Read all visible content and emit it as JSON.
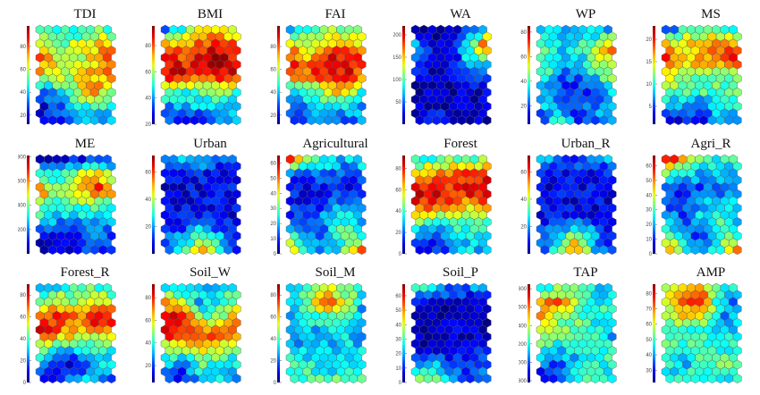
{
  "chart_data": [
    {
      "type": "heatmap",
      "title": "TDI",
      "range": [
        12,
        98
      ],
      "ticks": [
        20,
        40,
        60,
        80
      ],
      "grid": [
        [
          45,
          50,
          45,
          55,
          45
        ],
        [
          70,
          55,
          60,
          70,
          70
        ],
        [
          80,
          62,
          55,
          70,
          82
        ],
        [
          70,
          60,
          62,
          72,
          75
        ],
        [
          30,
          45,
          60,
          78,
          60
        ],
        [
          22,
          28,
          45,
          50,
          42
        ],
        [
          20,
          25,
          35,
          40,
          35
        ]
      ]
    },
    {
      "type": "heatmap",
      "title": "BMI",
      "range": [
        20,
        95
      ],
      "ticks": [
        20,
        40,
        60,
        80
      ],
      "grid": [
        [
          40,
          45,
          70,
          70,
          55
        ],
        [
          78,
          75,
          82,
          85,
          80
        ],
        [
          88,
          82,
          88,
          90,
          88
        ],
        [
          88,
          88,
          88,
          88,
          85
        ],
        [
          60,
          50,
          55,
          60,
          55
        ],
        [
          38,
          45,
          45,
          45,
          40
        ],
        [
          32,
          35,
          30,
          45,
          40
        ]
      ]
    },
    {
      "type": "heatmap",
      "title": "FAI",
      "range": [
        12,
        98
      ],
      "ticks": [
        20,
        40,
        60,
        80
      ],
      "grid": [
        [
          35,
          45,
          55,
          55,
          50
        ],
        [
          70,
          60,
          72,
          75,
          70
        ],
        [
          85,
          75,
          88,
          90,
          85
        ],
        [
          88,
          80,
          85,
          88,
          80
        ],
        [
          40,
          50,
          65,
          75,
          45
        ],
        [
          25,
          40,
          45,
          45,
          38
        ],
        [
          25,
          30,
          40,
          30,
          38
        ]
      ]
    },
    {
      "type": "heatmap",
      "title": "WA",
      "range": [
        0,
        220
      ],
      "ticks": [
        50,
        100,
        150,
        200
      ],
      "grid": [
        [
          15,
          15,
          15,
          40,
          60
        ],
        [
          60,
          15,
          15,
          100,
          200
        ],
        [
          70,
          15,
          15,
          80,
          90
        ],
        [
          15,
          15,
          15,
          40,
          30
        ],
        [
          15,
          15,
          15,
          15,
          20
        ],
        [
          15,
          15,
          15,
          15,
          15
        ],
        [
          15,
          50,
          15,
          15,
          15
        ]
      ]
    },
    {
      "type": "heatmap",
      "title": "WP",
      "range": [
        5,
        85
      ],
      "ticks": [
        20,
        40,
        60,
        80
      ],
      "grid": [
        [
          30,
          30,
          30,
          30,
          30
        ],
        [
          40,
          30,
          35,
          45,
          65
        ],
        [
          45,
          30,
          30,
          45,
          60
        ],
        [
          45,
          25,
          20,
          35,
          45
        ],
        [
          30,
          25,
          15,
          20,
          40
        ],
        [
          30,
          25,
          20,
          25,
          30
        ],
        [
          15,
          40,
          20,
          25,
          25
        ]
      ]
    },
    {
      "type": "heatmap",
      "title": "MS",
      "range": [
        1,
        23
      ],
      "ticks": [
        5,
        10,
        15,
        20
      ],
      "grid": [
        [
          5,
          10,
          12,
          12,
          10
        ],
        [
          17,
          15,
          17,
          18,
          17
        ],
        [
          19,
          16,
          17,
          17,
          20
        ],
        [
          15,
          13,
          12,
          12,
          12
        ],
        [
          12,
          11,
          11,
          11,
          12
        ],
        [
          8,
          8,
          6,
          10,
          10
        ],
        [
          4,
          4,
          4,
          8,
          6
        ]
      ]
    },
    {
      "type": "heatmap",
      "title": "ME",
      "range": [
        0,
        810
      ],
      "ticks": [
        200,
        400,
        600,
        800
      ],
      "grid": [
        [
          80,
          80,
          100,
          150,
          150
        ],
        [
          350,
          300,
          400,
          600,
          400
        ],
        [
          650,
          380,
          500,
          700,
          650
        ],
        [
          450,
          350,
          380,
          400,
          350
        ],
        [
          280,
          250,
          250,
          200,
          250
        ],
        [
          100,
          80,
          80,
          200,
          150
        ],
        [
          80,
          80,
          80,
          180,
          120
        ]
      ]
    },
    {
      "type": "heatmap",
      "title": "Urban",
      "range": [
        0,
        72
      ],
      "ticks": [
        20,
        40,
        60
      ],
      "grid": [
        [
          20,
          20,
          25,
          15,
          20
        ],
        [
          8,
          8,
          8,
          8,
          8
        ],
        [
          8,
          8,
          8,
          8,
          8
        ],
        [
          8,
          8,
          8,
          8,
          8
        ],
        [
          8,
          8,
          12,
          8,
          8
        ],
        [
          12,
          20,
          30,
          20,
          10
        ],
        [
          15,
          25,
          55,
          30,
          10
        ]
      ]
    },
    {
      "type": "heatmap",
      "title": "Agricultural",
      "range": [
        0,
        65
      ],
      "ticks": [
        0,
        10,
        20,
        30,
        40,
        50,
        60
      ],
      "grid": [
        [
          55,
          35,
          25,
          20,
          25
        ],
        [
          15,
          15,
          15,
          15,
          15
        ],
        [
          8,
          8,
          8,
          8,
          8
        ],
        [
          8,
          8,
          12,
          20,
          15
        ],
        [
          15,
          10,
          20,
          28,
          20
        ],
        [
          30,
          15,
          15,
          30,
          25
        ],
        [
          50,
          25,
          15,
          30,
          50
        ]
      ]
    },
    {
      "type": "heatmap",
      "title": "Forest",
      "range": [
        0,
        92
      ],
      "ticks": [
        0,
        20,
        40,
        60,
        80
      ],
      "grid": [
        [
          35,
          40,
          45,
          45,
          45
        ],
        [
          65,
          70,
          72,
          75,
          75
        ],
        [
          85,
          82,
          80,
          85,
          88
        ],
        [
          80,
          75,
          70,
          65,
          78
        ],
        [
          50,
          45,
          40,
          40,
          38
        ],
        [
          30,
          15,
          30,
          35,
          35
        ],
        [
          15,
          15,
          20,
          30,
          25
        ]
      ]
    },
    {
      "type": "heatmap",
      "title": "Urban_R",
      "range": [
        0,
        72
      ],
      "ticks": [
        20,
        40,
        60
      ],
      "grid": [
        [
          20,
          18,
          15,
          15,
          22
        ],
        [
          8,
          8,
          8,
          8,
          12
        ],
        [
          8,
          8,
          8,
          8,
          8
        ],
        [
          8,
          8,
          8,
          8,
          8
        ],
        [
          8,
          10,
          15,
          8,
          8
        ],
        [
          15,
          25,
          40,
          20,
          10
        ],
        [
          15,
          30,
          55,
          25,
          10
        ]
      ]
    },
    {
      "type": "heatmap",
      "title": "Agri_R",
      "range": [
        0,
        67
      ],
      "ticks": [
        0,
        10,
        20,
        30,
        40,
        50,
        60
      ],
      "grid": [
        [
          60,
          45,
          30,
          25,
          30
        ],
        [
          30,
          25,
          20,
          20,
          20
        ],
        [
          10,
          12,
          12,
          15,
          15
        ],
        [
          15,
          12,
          20,
          25,
          20
        ],
        [
          20,
          15,
          25,
          30,
          20
        ],
        [
          30,
          15,
          12,
          30,
          28
        ],
        [
          55,
          30,
          15,
          30,
          55
        ]
      ]
    },
    {
      "type": "heatmap",
      "title": "Forest_R",
      "range": [
        0,
        90
      ],
      "ticks": [
        0,
        20,
        40,
        60,
        80
      ],
      "grid": [
        [
          20,
          35,
          40,
          40,
          35
        ],
        [
          50,
          55,
          50,
          55,
          55
        ],
        [
          80,
          75,
          70,
          80,
          85
        ],
        [
          78,
          70,
          60,
          60,
          65
        ],
        [
          45,
          35,
          35,
          35,
          35
        ],
        [
          25,
          15,
          10,
          30,
          30
        ],
        [
          15,
          15,
          20,
          30,
          20
        ]
      ]
    },
    {
      "type": "heatmap",
      "title": "Soil_W",
      "range": [
        5,
        92
      ],
      "ticks": [
        20,
        40,
        60,
        80
      ],
      "grid": [
        [
          30,
          40,
          35,
          35,
          40
        ],
        [
          70,
          55,
          30,
          40,
          50
        ],
        [
          85,
          80,
          55,
          45,
          80
        ],
        [
          85,
          82,
          80,
          75,
          70
        ],
        [
          45,
          55,
          60,
          55,
          45
        ],
        [
          35,
          25,
          45,
          40,
          35
        ],
        [
          25,
          15,
          30,
          35,
          30
        ]
      ]
    },
    {
      "type": "heatmap",
      "title": "Soil_M",
      "range": [
        0,
        90
      ],
      "ticks": [
        0,
        20,
        40,
        60,
        80
      ],
      "grid": [
        [
          30,
          45,
          55,
          45,
          35
        ],
        [
          30,
          45,
          75,
          55,
          30
        ],
        [
          25,
          35,
          40,
          40,
          25
        ],
        [
          20,
          25,
          30,
          35,
          25
        ],
        [
          30,
          30,
          28,
          30,
          30
        ],
        [
          38,
          35,
          25,
          35,
          35
        ],
        [
          30,
          38,
          40,
          40,
          38
        ]
      ]
    },
    {
      "type": "heatmap",
      "title": "Soil_P",
      "range": [
        0,
        68
      ],
      "ticks": [
        0,
        10,
        20,
        30,
        40,
        50,
        60
      ],
      "grid": [
        [
          25,
          25,
          15,
          15,
          20
        ],
        [
          5,
          5,
          5,
          5,
          5
        ],
        [
          5,
          5,
          5,
          5,
          5
        ],
        [
          5,
          5,
          5,
          5,
          5
        ],
        [
          5,
          5,
          5,
          8,
          10
        ],
        [
          15,
          18,
          15,
          15,
          15
        ],
        [
          40,
          35,
          20,
          12,
          18
        ]
      ]
    },
    {
      "type": "heatmap",
      "title": "TAP",
      "range": [
        780,
        1850
      ],
      "ticks": [
        800,
        1000,
        1200,
        1400,
        1600,
        1800
      ],
      "grid": [
        [
          1200,
          1300,
          1250,
          1150,
          1150
        ],
        [
          1550,
          1650,
          1300,
          1200,
          1150
        ],
        [
          1600,
          1350,
          1300,
          1200,
          1300
        ],
        [
          1250,
          1300,
          1300,
          1200,
          1050
        ],
        [
          1250,
          1150,
          1200,
          1250,
          1200
        ],
        [
          1050,
          1000,
          1100,
          1250,
          1200
        ],
        [
          900,
          1050,
          1200,
          1250,
          1150
        ]
      ]
    },
    {
      "type": "heatmap",
      "title": "AMP",
      "range": [
        22,
        86
      ],
      "ticks": [
        30,
        40,
        50,
        60,
        70,
        80
      ],
      "grid": [
        [
          55,
          65,
          70,
          45,
          50
        ],
        [
          55,
          75,
          80,
          45,
          35
        ],
        [
          60,
          62,
          55,
          40,
          40
        ],
        [
          45,
          45,
          50,
          45,
          45
        ],
        [
          55,
          50,
          50,
          45,
          50
        ],
        [
          50,
          40,
          50,
          55,
          50
        ],
        [
          45,
          48,
          50,
          45,
          45
        ]
      ]
    }
  ],
  "colormap": "jet",
  "colors": {
    "hex_edge": "#555555",
    "tick_text": "#444444"
  }
}
